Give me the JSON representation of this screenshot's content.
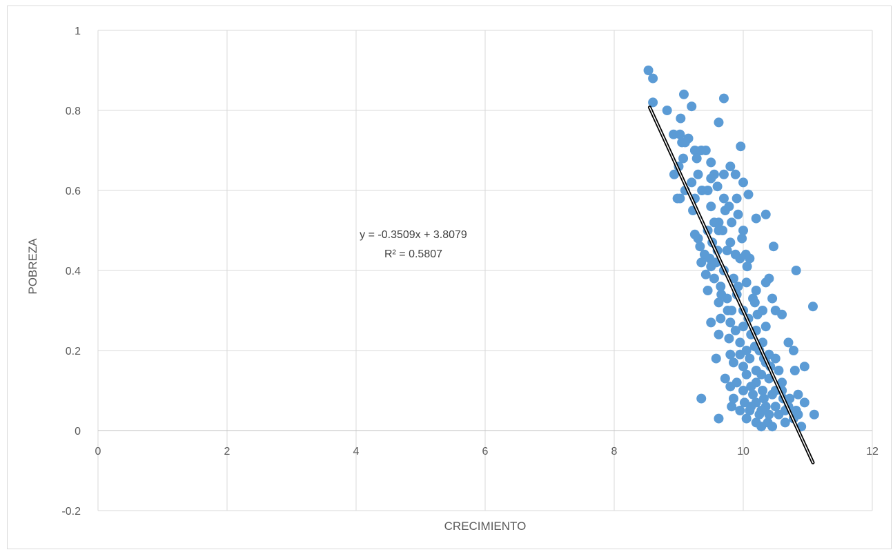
{
  "chart_data": {
    "type": "scatter",
    "title": "",
    "xlabel": "CRECIMIENTO",
    "ylabel": "POBREZA",
    "xlim": [
      0,
      12
    ],
    "ylim": [
      -0.2,
      1
    ],
    "xticks": [
      "0",
      "2",
      "4",
      "6",
      "8",
      "10",
      "12"
    ],
    "yticks": [
      "-0.2",
      "0",
      "0.2",
      "0.4",
      "0.6",
      "0.8",
      "1"
    ],
    "grid": true,
    "legend": "none",
    "marker_color": "#5b9bd5",
    "trendline": {
      "slope": -0.3509,
      "intercept": 3.8079,
      "x_range": [
        8.55,
        11.08
      ],
      "equation": "y = -0.3509x + 3.8079",
      "r_squared": "R² = 0.5807",
      "color": "#000000"
    },
    "points": [
      [
        8.53,
        0.9
      ],
      [
        8.6,
        0.88
      ],
      [
        8.6,
        0.82
      ],
      [
        8.82,
        0.8
      ],
      [
        9.08,
        0.84
      ],
      [
        9.2,
        0.81
      ],
      [
        9.7,
        0.83
      ],
      [
        9.62,
        0.77
      ],
      [
        9.03,
        0.78
      ],
      [
        8.92,
        0.74
      ],
      [
        9.02,
        0.74
      ],
      [
        9.05,
        0.72
      ],
      [
        9.15,
        0.73
      ],
      [
        9.1,
        0.72
      ],
      [
        9.25,
        0.7
      ],
      [
        9.35,
        0.7
      ],
      [
        9.28,
        0.68
      ],
      [
        9.42,
        0.7
      ],
      [
        9.07,
        0.68
      ],
      [
        9.8,
        0.66
      ],
      [
        9.96,
        0.71
      ],
      [
        9.5,
        0.67
      ],
      [
        9.3,
        0.64
      ],
      [
        8.93,
        0.64
      ],
      [
        9.0,
        0.66
      ],
      [
        9.2,
        0.62
      ],
      [
        9.45,
        0.6
      ],
      [
        9.55,
        0.64
      ],
      [
        9.7,
        0.64
      ],
      [
        9.88,
        0.64
      ],
      [
        10.0,
        0.62
      ],
      [
        9.9,
        0.58
      ],
      [
        10.08,
        0.59
      ],
      [
        9.1,
        0.6
      ],
      [
        9.02,
        0.58
      ],
      [
        8.98,
        0.58
      ],
      [
        9.25,
        0.58
      ],
      [
        9.5,
        0.56
      ],
      [
        9.7,
        0.58
      ],
      [
        9.36,
        0.6
      ],
      [
        9.62,
        0.52
      ],
      [
        9.82,
        0.52
      ],
      [
        9.92,
        0.54
      ],
      [
        10.0,
        0.5
      ],
      [
        10.2,
        0.53
      ],
      [
        10.35,
        0.54
      ],
      [
        9.55,
        0.52
      ],
      [
        9.72,
        0.55
      ],
      [
        9.25,
        0.49
      ],
      [
        9.3,
        0.48
      ],
      [
        9.45,
        0.5
      ],
      [
        9.62,
        0.5
      ],
      [
        9.8,
        0.47
      ],
      [
        9.88,
        0.44
      ],
      [
        10.04,
        0.44
      ],
      [
        10.1,
        0.43
      ],
      [
        10.47,
        0.46
      ],
      [
        9.4,
        0.44
      ],
      [
        9.35,
        0.42
      ],
      [
        9.5,
        0.41
      ],
      [
        9.6,
        0.45
      ],
      [
        9.7,
        0.4
      ],
      [
        9.85,
        0.38
      ],
      [
        10.06,
        0.41
      ],
      [
        10.82,
        0.4
      ],
      [
        9.55,
        0.38
      ],
      [
        9.65,
        0.36
      ],
      [
        9.45,
        0.35
      ],
      [
        9.75,
        0.33
      ],
      [
        9.9,
        0.34
      ],
      [
        10.05,
        0.37
      ],
      [
        10.2,
        0.35
      ],
      [
        10.35,
        0.37
      ],
      [
        10.4,
        0.38
      ],
      [
        10.45,
        0.33
      ],
      [
        9.62,
        0.32
      ],
      [
        9.82,
        0.3
      ],
      [
        10.0,
        0.3
      ],
      [
        10.15,
        0.33
      ],
      [
        10.3,
        0.3
      ],
      [
        10.5,
        0.3
      ],
      [
        10.6,
        0.29
      ],
      [
        11.08,
        0.31
      ],
      [
        9.5,
        0.27
      ],
      [
        9.65,
        0.28
      ],
      [
        9.8,
        0.27
      ],
      [
        10.0,
        0.26
      ],
      [
        10.2,
        0.25
      ],
      [
        10.35,
        0.26
      ],
      [
        9.62,
        0.24
      ],
      [
        9.78,
        0.23
      ],
      [
        9.95,
        0.22
      ],
      [
        10.12,
        0.24
      ],
      [
        10.3,
        0.22
      ],
      [
        10.7,
        0.22
      ],
      [
        10.78,
        0.2
      ],
      [
        9.58,
        0.18
      ],
      [
        9.8,
        0.19
      ],
      [
        9.95,
        0.19
      ],
      [
        10.1,
        0.18
      ],
      [
        10.25,
        0.2
      ],
      [
        10.4,
        0.19
      ],
      [
        10.5,
        0.18
      ],
      [
        9.85,
        0.17
      ],
      [
        10.0,
        0.16
      ],
      [
        10.2,
        0.15
      ],
      [
        10.35,
        0.17
      ],
      [
        10.55,
        0.15
      ],
      [
        10.8,
        0.15
      ],
      [
        10.95,
        0.16
      ],
      [
        9.72,
        0.13
      ],
      [
        9.9,
        0.12
      ],
      [
        10.05,
        0.14
      ],
      [
        10.2,
        0.12
      ],
      [
        10.4,
        0.13
      ],
      [
        10.6,
        0.12
      ],
      [
        9.8,
        0.11
      ],
      [
        10.0,
        0.1
      ],
      [
        10.15,
        0.09
      ],
      [
        10.3,
        0.1
      ],
      [
        10.45,
        0.09
      ],
      [
        10.62,
        0.08
      ],
      [
        10.72,
        0.08
      ],
      [
        10.85,
        0.09
      ],
      [
        10.95,
        0.07
      ],
      [
        9.35,
        0.08
      ],
      [
        9.85,
        0.08
      ],
      [
        10.02,
        0.07
      ],
      [
        10.2,
        0.07
      ],
      [
        10.35,
        0.06
      ],
      [
        10.5,
        0.06
      ],
      [
        10.65,
        0.05
      ],
      [
        10.82,
        0.05
      ],
      [
        9.82,
        0.06
      ],
      [
        9.95,
        0.05
      ],
      [
        10.1,
        0.05
      ],
      [
        10.25,
        0.04
      ],
      [
        10.4,
        0.04
      ],
      [
        10.55,
        0.04
      ],
      [
        10.85,
        0.04
      ],
      [
        11.1,
        0.04
      ],
      [
        9.62,
        0.03
      ],
      [
        10.05,
        0.03
      ],
      [
        10.2,
        0.02
      ],
      [
        10.38,
        0.02
      ],
      [
        10.65,
        0.02
      ],
      [
        10.9,
        0.01
      ],
      [
        10.28,
        0.01
      ],
      [
        10.45,
        0.01
      ],
      [
        10.12,
        0.11
      ],
      [
        10.28,
        0.14
      ],
      [
        9.92,
        0.36
      ],
      [
        9.75,
        0.45
      ],
      [
        9.98,
        0.48
      ],
      [
        9.68,
        0.5
      ],
      [
        9.52,
        0.47
      ],
      [
        9.42,
        0.39
      ],
      [
        9.58,
        0.42
      ],
      [
        10.08,
        0.28
      ],
      [
        10.22,
        0.29
      ],
      [
        9.88,
        0.25
      ],
      [
        10.18,
        0.21
      ],
      [
        10.32,
        0.18
      ],
      [
        10.42,
        0.16
      ],
      [
        10.05,
        0.2
      ],
      [
        9.76,
        0.3
      ],
      [
        9.66,
        0.34
      ],
      [
        9.48,
        0.43
      ],
      [
        9.33,
        0.46
      ],
      [
        9.22,
        0.55
      ],
      [
        9.5,
        0.63
      ],
      [
        9.6,
        0.61
      ],
      [
        9.78,
        0.56
      ],
      [
        9.95,
        0.43
      ],
      [
        10.18,
        0.32
      ],
      [
        10.12,
        0.06
      ],
      [
        10.28,
        0.05
      ],
      [
        10.5,
        0.1
      ],
      [
        10.7,
        0.06
      ],
      [
        10.78,
        0.03
      ],
      [
        10.32,
        0.08
      ],
      [
        10.6,
        0.1
      ]
    ]
  }
}
